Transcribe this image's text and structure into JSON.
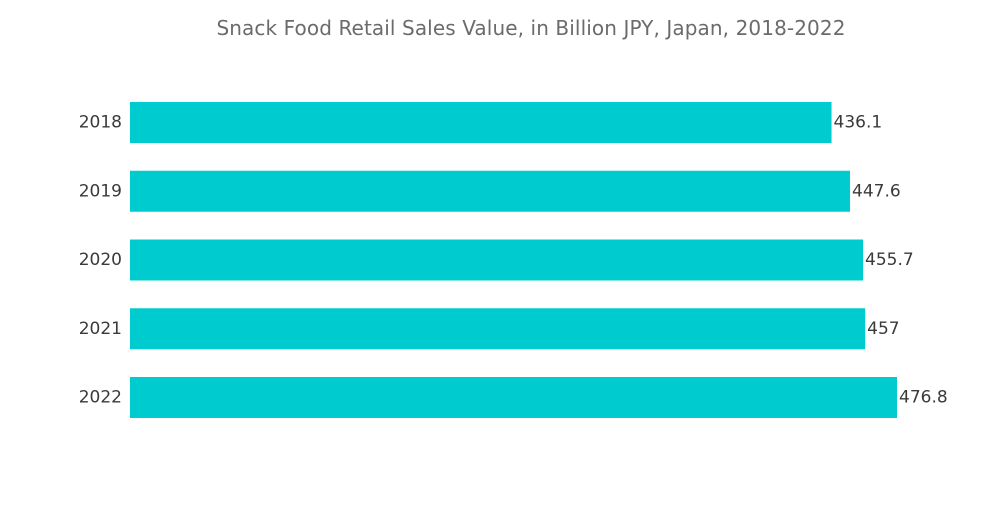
{
  "chart_data": {
    "type": "bar",
    "orientation": "horizontal",
    "title": "Snack Food Retail Sales Value, in Billion JPY, Japan, 2018-2022",
    "xlabel": "",
    "ylabel": "",
    "categories": [
      "2018",
      "2019",
      "2020",
      "2021",
      "2022"
    ],
    "values": [
      436.1,
      447.6,
      455.7,
      457,
      476.8
    ],
    "value_labels": [
      "436.1",
      "447.6",
      "455.7",
      "457",
      "476.8"
    ],
    "xlim": [
      0,
      476.8
    ],
    "grid": false,
    "legend": "none",
    "colors": {
      "bar": "#00ccd0",
      "title": "#6b6b6b",
      "label": "#3a3a3a"
    }
  }
}
